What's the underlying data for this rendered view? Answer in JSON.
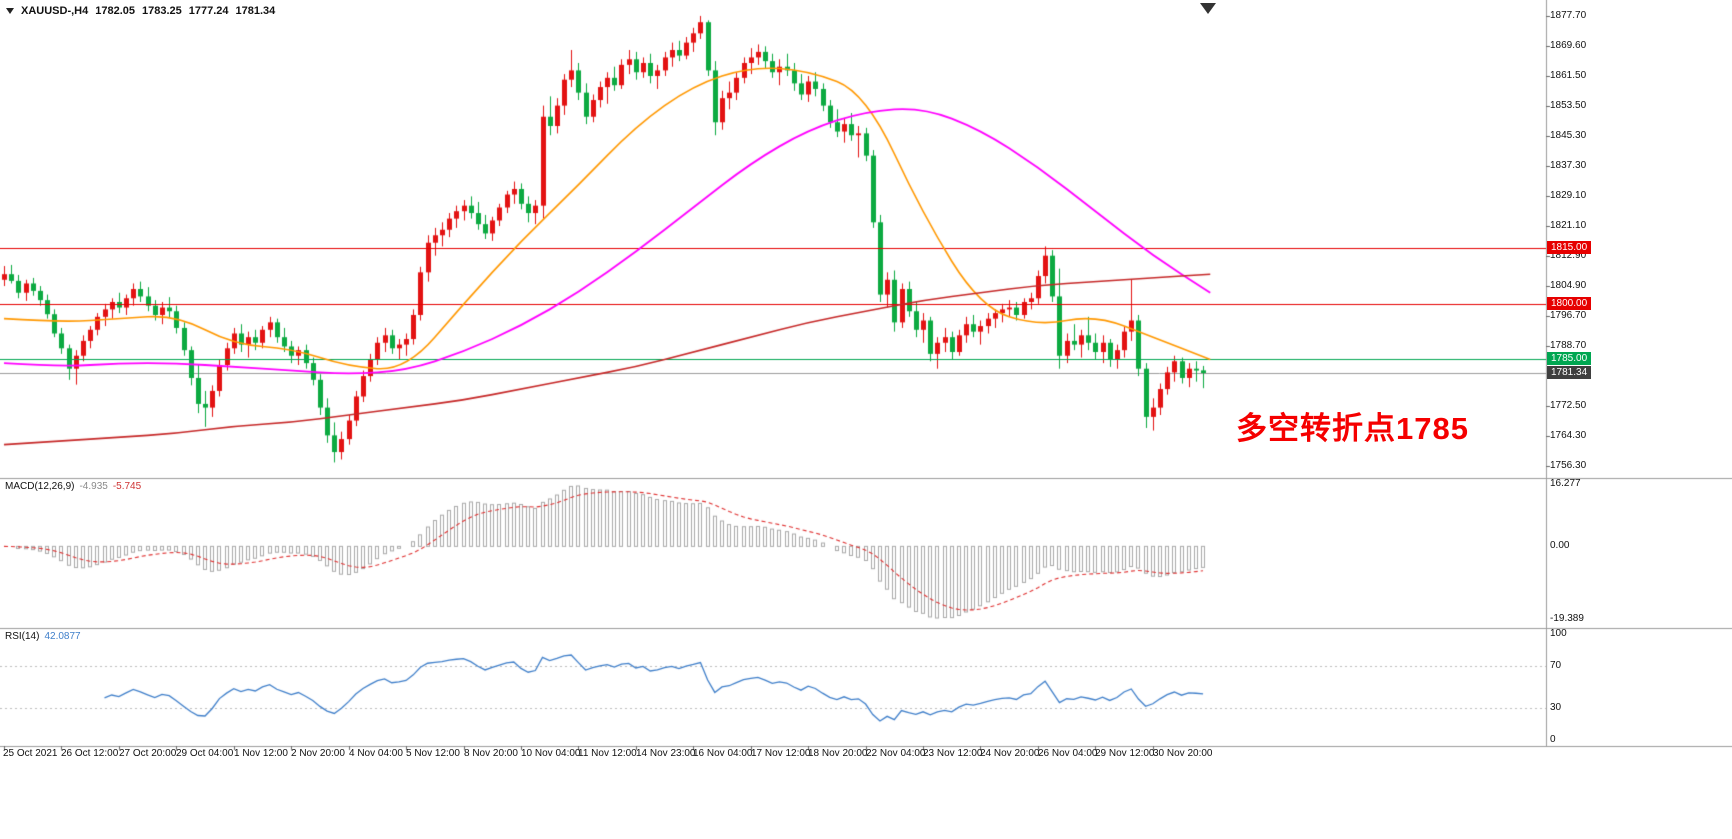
{
  "header": {
    "symbol_period": "XAUUSD-,H4",
    "open": "1782.05",
    "high": "1783.25",
    "low": "1777.24",
    "close": "1781.34"
  },
  "annotation": {
    "text": "多空转折点1785",
    "color": "#f50000"
  },
  "chart_data": {
    "type": "candlestick",
    "symbol": "XAUUSD-",
    "timeframe": "H4",
    "bull_color": "#e31212",
    "bear_color": "#0caa41",
    "price_axis_ticks": [
      "1877.70",
      "1869.60",
      "1861.50",
      "1853.50",
      "1845.30",
      "1837.30",
      "1829.10",
      "1821.10",
      "1812.90",
      "1804.90",
      "1796.70",
      "1788.70",
      "1772.50",
      "1764.30",
      "1756.30"
    ],
    "time_axis": [
      {
        "bar": 0,
        "label": "25 Oct 2021"
      },
      {
        "bar": 8,
        "label": "26 Oct 12:00"
      },
      {
        "bar": 16,
        "label": "27 Oct 20:00"
      },
      {
        "bar": 24,
        "label": "29 Oct 04:00"
      },
      {
        "bar": 32,
        "label": "1 Nov 12:00"
      },
      {
        "bar": 40,
        "label": "2 Nov 20:00"
      },
      {
        "bar": 48,
        "label": "4 Nov 04:00"
      },
      {
        "bar": 56,
        "label": "5 Nov 12:00"
      },
      {
        "bar": 64,
        "label": "8 Nov 20:00"
      },
      {
        "bar": 72,
        "label": "10 Nov 04:00"
      },
      {
        "bar": 80,
        "label": "11 Nov 12:00"
      },
      {
        "bar": 88,
        "label": "14 Nov 23:00"
      },
      {
        "bar": 96,
        "label": "16 Nov 04:00"
      },
      {
        "bar": 104,
        "label": "17 Nov 12:00"
      },
      {
        "bar": 112,
        "label": "18 Nov 20:00"
      },
      {
        "bar": 120,
        "label": "22 Nov 04:00"
      },
      {
        "bar": 128,
        "label": "23 Nov 12:00"
      },
      {
        "bar": 136,
        "label": "24 Nov 20:00"
      },
      {
        "bar": 144,
        "label": "26 Nov 04:00"
      },
      {
        "bar": 152,
        "label": "29 Nov 12:00"
      },
      {
        "bar": 160,
        "label": "30 Nov 20:00"
      }
    ],
    "candles": [
      [
        1806.5,
        1810.2,
        1804.8,
        1808.0
      ],
      [
        1808.0,
        1810.5,
        1805.5,
        1806.2
      ],
      [
        1806.2,
        1807.8,
        1801.5,
        1803.0
      ],
      [
        1803.0,
        1806.5,
        1800.8,
        1805.5
      ],
      [
        1805.5,
        1807.0,
        1802.2,
        1803.5
      ],
      [
        1803.5,
        1804.8,
        1799.5,
        1801.0
      ],
      [
        1801.0,
        1802.5,
        1796.0,
        1797.2
      ],
      [
        1797.2,
        1798.5,
        1791.0,
        1792.0
      ],
      [
        1792.0,
        1793.5,
        1786.5,
        1788.0
      ],
      [
        1788.0,
        1789.0,
        1779.5,
        1782.5
      ],
      [
        1782.5,
        1787.5,
        1778.2,
        1786.0
      ],
      [
        1786.0,
        1791.5,
        1784.5,
        1790.0
      ],
      [
        1790.0,
        1794.0,
        1788.0,
        1793.0
      ],
      [
        1793.0,
        1797.5,
        1791.5,
        1796.5
      ],
      [
        1796.5,
        1800.0,
        1794.0,
        1798.5
      ],
      [
        1798.5,
        1801.5,
        1796.0,
        1800.5
      ],
      [
        1800.5,
        1803.0,
        1797.5,
        1799.0
      ],
      [
        1799.0,
        1802.5,
        1797.0,
        1801.5
      ],
      [
        1801.5,
        1805.5,
        1799.5,
        1804.0
      ],
      [
        1804.0,
        1806.0,
        1800.5,
        1802.0
      ],
      [
        1802.0,
        1804.5,
        1798.0,
        1799.5
      ],
      [
        1799.5,
        1801.0,
        1795.5,
        1797.0
      ],
      [
        1797.0,
        1800.5,
        1794.5,
        1799.0
      ],
      [
        1799.0,
        1801.8,
        1796.2,
        1798.0
      ],
      [
        1798.0,
        1799.5,
        1792.0,
        1793.5
      ],
      [
        1793.5,
        1795.0,
        1786.0,
        1787.5
      ],
      [
        1787.5,
        1788.5,
        1778.0,
        1780.0
      ],
      [
        1780.0,
        1783.5,
        1770.5,
        1773.0
      ],
      [
        1773.0,
        1776.5,
        1766.8,
        1772.0
      ],
      [
        1772.0,
        1778.0,
        1769.5,
        1776.5
      ],
      [
        1776.5,
        1785.0,
        1775.0,
        1783.5
      ],
      [
        1783.5,
        1789.5,
        1782.0,
        1788.0
      ],
      [
        1788.0,
        1793.5,
        1786.5,
        1792.0
      ],
      [
        1792.0,
        1794.5,
        1787.0,
        1789.0
      ],
      [
        1789.0,
        1792.5,
        1785.5,
        1791.0
      ],
      [
        1791.0,
        1793.0,
        1787.5,
        1789.5
      ],
      [
        1789.5,
        1794.0,
        1788.0,
        1793.0
      ],
      [
        1793.0,
        1796.5,
        1791.0,
        1795.0
      ],
      [
        1795.0,
        1796.0,
        1789.5,
        1791.0
      ],
      [
        1791.0,
        1793.5,
        1787.0,
        1788.5
      ],
      [
        1788.5,
        1790.0,
        1784.0,
        1786.0
      ],
      [
        1786.0,
        1788.5,
        1783.5,
        1787.5
      ],
      [
        1787.5,
        1789.0,
        1782.5,
        1784.0
      ],
      [
        1784.0,
        1785.5,
        1778.0,
        1779.5
      ],
      [
        1779.5,
        1781.0,
        1770.0,
        1772.0
      ],
      [
        1772.0,
        1774.5,
        1762.5,
        1764.5
      ],
      [
        1764.5,
        1768.0,
        1757.2,
        1760.0
      ],
      [
        1760.0,
        1765.5,
        1758.0,
        1763.5
      ],
      [
        1763.5,
        1770.0,
        1762.0,
        1768.5
      ],
      [
        1768.5,
        1776.5,
        1767.0,
        1775.0
      ],
      [
        1775.0,
        1782.0,
        1773.5,
        1780.5
      ],
      [
        1780.5,
        1786.5,
        1779.0,
        1785.0
      ],
      [
        1785.0,
        1791.0,
        1783.5,
        1789.5
      ],
      [
        1789.5,
        1793.5,
        1787.0,
        1791.5
      ],
      [
        1791.5,
        1793.0,
        1786.5,
        1788.0
      ],
      [
        1788.0,
        1790.5,
        1785.0,
        1789.0
      ],
      [
        1789.0,
        1792.0,
        1786.0,
        1790.5
      ],
      [
        1790.5,
        1798.5,
        1789.0,
        1797.0
      ],
      [
        1797.0,
        1810.0,
        1795.5,
        1808.5
      ],
      [
        1808.5,
        1818.5,
        1806.0,
        1816.5
      ],
      [
        1816.5,
        1820.5,
        1813.0,
        1818.5
      ],
      [
        1818.5,
        1822.0,
        1815.5,
        1820.0
      ],
      [
        1820.0,
        1824.5,
        1818.0,
        1823.0
      ],
      [
        1823.0,
        1826.5,
        1820.5,
        1825.0
      ],
      [
        1825.0,
        1828.0,
        1822.5,
        1826.5
      ],
      [
        1826.5,
        1829.0,
        1823.0,
        1824.5
      ],
      [
        1824.5,
        1827.5,
        1820.0,
        1821.5
      ],
      [
        1821.5,
        1824.0,
        1817.5,
        1819.0
      ],
      [
        1819.0,
        1823.5,
        1817.0,
        1822.5
      ],
      [
        1822.5,
        1827.0,
        1821.0,
        1826.0
      ],
      [
        1826.0,
        1830.5,
        1824.5,
        1829.5
      ],
      [
        1829.5,
        1833.0,
        1827.0,
        1831.0
      ],
      [
        1831.0,
        1832.5,
        1825.5,
        1827.0
      ],
      [
        1827.0,
        1829.0,
        1822.0,
        1824.5
      ],
      [
        1824.5,
        1828.0,
        1821.5,
        1826.5
      ],
      [
        1826.5,
        1853.5,
        1823.0,
        1850.5
      ],
      [
        1850.5,
        1856.0,
        1845.5,
        1848.0
      ],
      [
        1848.0,
        1855.5,
        1846.0,
        1853.5
      ],
      [
        1853.5,
        1862.0,
        1851.0,
        1860.5
      ],
      [
        1860.5,
        1868.5,
        1858.5,
        1863.0
      ],
      [
        1863.0,
        1865.0,
        1855.0,
        1857.0
      ],
      [
        1857.0,
        1859.5,
        1848.5,
        1850.5
      ],
      [
        1850.5,
        1856.5,
        1849.0,
        1855.0
      ],
      [
        1855.0,
        1860.0,
        1853.0,
        1858.5
      ],
      [
        1858.5,
        1862.5,
        1854.0,
        1861.0
      ],
      [
        1861.0,
        1864.0,
        1857.5,
        1859.0
      ],
      [
        1859.0,
        1866.0,
        1858.0,
        1864.5
      ],
      [
        1864.5,
        1868.5,
        1862.0,
        1866.0
      ],
      [
        1866.0,
        1868.0,
        1860.5,
        1862.5
      ],
      [
        1862.5,
        1866.5,
        1861.0,
        1865.0
      ],
      [
        1865.0,
        1867.5,
        1859.5,
        1861.5
      ],
      [
        1861.5,
        1864.5,
        1858.0,
        1863.0
      ],
      [
        1863.0,
        1868.0,
        1861.5,
        1866.5
      ],
      [
        1866.5,
        1870.5,
        1864.0,
        1868.5
      ],
      [
        1868.5,
        1871.0,
        1865.5,
        1867.0
      ],
      [
        1867.0,
        1872.0,
        1866.0,
        1870.5
      ],
      [
        1870.5,
        1874.5,
        1868.0,
        1873.0
      ],
      [
        1873.0,
        1877.7,
        1871.5,
        1876.0
      ],
      [
        1876.0,
        1876.5,
        1861.5,
        1863.0
      ],
      [
        1863.0,
        1865.5,
        1845.5,
        1849.0
      ],
      [
        1849.0,
        1857.5,
        1847.0,
        1855.5
      ],
      [
        1855.5,
        1860.0,
        1852.5,
        1857.0
      ],
      [
        1857.0,
        1862.5,
        1855.0,
        1861.0
      ],
      [
        1861.0,
        1866.5,
        1859.5,
        1865.0
      ],
      [
        1865.0,
        1869.0,
        1862.0,
        1866.5
      ],
      [
        1866.5,
        1870.0,
        1864.5,
        1868.0
      ],
      [
        1868.0,
        1869.5,
        1863.5,
        1865.5
      ],
      [
        1865.5,
        1867.5,
        1861.0,
        1862.5
      ],
      [
        1862.5,
        1866.0,
        1859.0,
        1864.0
      ],
      [
        1864.0,
        1867.5,
        1861.5,
        1863.0
      ],
      [
        1863.0,
        1865.0,
        1857.5,
        1859.5
      ],
      [
        1859.5,
        1862.0,
        1855.0,
        1856.5
      ],
      [
        1856.5,
        1861.5,
        1854.5,
        1860.0
      ],
      [
        1860.0,
        1862.5,
        1856.0,
        1858.0
      ],
      [
        1858.0,
        1859.5,
        1852.0,
        1853.5
      ],
      [
        1853.5,
        1855.0,
        1847.5,
        1849.0
      ],
      [
        1849.0,
        1852.5,
        1845.0,
        1846.5
      ],
      [
        1846.5,
        1850.0,
        1843.5,
        1848.5
      ],
      [
        1848.5,
        1851.5,
        1844.0,
        1845.5
      ],
      [
        1845.5,
        1848.0,
        1839.5,
        1846.0
      ],
      [
        1846.0,
        1847.5,
        1838.5,
        1840.0
      ],
      [
        1840.0,
        1841.5,
        1820.5,
        1822.0
      ],
      [
        1822.0,
        1824.0,
        1800.5,
        1802.5
      ],
      [
        1802.5,
        1808.5,
        1799.0,
        1806.5
      ],
      [
        1806.5,
        1809.0,
        1792.5,
        1795.0
      ],
      [
        1795.0,
        1805.5,
        1793.5,
        1804.0
      ],
      [
        1804.0,
        1806.0,
        1796.5,
        1798.0
      ],
      [
        1798.0,
        1800.5,
        1791.0,
        1793.0
      ],
      [
        1793.0,
        1797.5,
        1789.5,
        1795.5
      ],
      [
        1795.5,
        1796.5,
        1784.5,
        1786.5
      ],
      [
        1786.5,
        1791.0,
        1782.5,
        1789.5
      ],
      [
        1789.5,
        1793.5,
        1787.0,
        1791.0
      ],
      [
        1791.0,
        1792.5,
        1785.0,
        1787.0
      ],
      [
        1787.0,
        1793.0,
        1786.0,
        1791.5
      ],
      [
        1791.5,
        1796.5,
        1789.5,
        1794.5
      ],
      [
        1794.5,
        1797.0,
        1791.0,
        1792.5
      ],
      [
        1792.5,
        1795.5,
        1789.0,
        1794.0
      ],
      [
        1794.0,
        1797.5,
        1792.0,
        1796.0
      ],
      [
        1796.0,
        1798.5,
        1793.5,
        1797.5
      ],
      [
        1797.5,
        1800.0,
        1795.0,
        1798.5
      ],
      [
        1798.5,
        1801.0,
        1796.5,
        1799.0
      ],
      [
        1799.0,
        1800.5,
        1795.5,
        1797.0
      ],
      [
        1797.0,
        1801.5,
        1796.0,
        1800.5
      ],
      [
        1800.5,
        1803.0,
        1798.5,
        1801.5
      ],
      [
        1801.5,
        1809.0,
        1800.0,
        1807.5
      ],
      [
        1807.5,
        1815.5,
        1805.5,
        1813.0
      ],
      [
        1813.0,
        1814.5,
        1800.5,
        1802.0
      ],
      [
        1802.0,
        1809.5,
        1782.5,
        1786.0
      ],
      [
        1786.0,
        1792.0,
        1784.0,
        1790.0
      ],
      [
        1790.0,
        1794.5,
        1787.5,
        1789.0
      ],
      [
        1789.0,
        1793.0,
        1785.5,
        1791.5
      ],
      [
        1791.5,
        1796.5,
        1787.5,
        1789.5
      ],
      [
        1789.5,
        1792.0,
        1785.0,
        1787.0
      ],
      [
        1787.0,
        1791.5,
        1784.0,
        1789.5
      ],
      [
        1789.5,
        1790.5,
        1783.0,
        1785.0
      ],
      [
        1785.0,
        1789.0,
        1782.5,
        1787.5
      ],
      [
        1787.5,
        1794.0,
        1785.5,
        1792.5
      ],
      [
        1792.5,
        1806.5,
        1790.0,
        1795.5
      ],
      [
        1795.5,
        1797.0,
        1780.5,
        1782.5
      ],
      [
        1782.5,
        1784.0,
        1766.5,
        1769.5
      ],
      [
        1769.5,
        1774.5,
        1765.8,
        1772.0
      ],
      [
        1772.0,
        1778.5,
        1770.0,
        1777.0
      ],
      [
        1777.0,
        1783.0,
        1775.5,
        1781.5
      ],
      [
        1781.5,
        1786.0,
        1779.0,
        1784.5
      ],
      [
        1784.5,
        1785.5,
        1778.5,
        1780.0
      ],
      [
        1780.0,
        1784.0,
        1777.5,
        1782.5
      ],
      [
        1782.5,
        1784.5,
        1779.0,
        1782.0
      ],
      [
        1782.05,
        1783.25,
        1777.24,
        1781.34
      ]
    ],
    "moving_averages": [
      {
        "name": "fast-ma",
        "color": "#ff9800",
        "width": 1.6,
        "sample_step": 8,
        "values": [
          1796,
          1795,
          1796,
          1797,
          1789,
          1788,
          1783,
          1782,
          1800,
          1817,
          1832,
          1848,
          1859,
          1864,
          1863,
          1857,
          1824,
          1799,
          1794,
          1797,
          1791,
          1785
        ]
      },
      {
        "name": "mid-ma",
        "color": "#ff00ff",
        "width": 1.8,
        "sample_step": 8,
        "values": [
          1784,
          1783,
          1784,
          1784,
          1783,
          1782,
          1781,
          1782,
          1787,
          1794,
          1803,
          1814,
          1826,
          1838,
          1847,
          1852,
          1853,
          1847,
          1837,
          1825,
          1813,
          1803
        ]
      },
      {
        "name": "slow-ma",
        "color": "#c62828",
        "width": 1.6,
        "sample_step": 8,
        "values": [
          1762,
          1763,
          1764,
          1765,
          1767,
          1768,
          1770,
          1772,
          1774,
          1777,
          1780,
          1783,
          1787,
          1791,
          1795,
          1798,
          1801,
          1803,
          1805,
          1806,
          1807,
          1808
        ]
      }
    ],
    "levels": [
      {
        "price": 1815.0,
        "label": "1815.00",
        "color": "#e60000"
      },
      {
        "price": 1800.0,
        "label": "1800.00",
        "color": "#e60000"
      },
      {
        "price": 1785.0,
        "label": "1785.00",
        "color": "#00a651"
      }
    ],
    "current_price": {
      "value": 1781.34,
      "label": "1781.34",
      "color": "#3f3f3f",
      "line_color": "#9b9b9b"
    },
    "indicators": {
      "macd": {
        "label": "MACD(12,26,9)",
        "main_value": "-4.935",
        "signal_value": "-5.745",
        "fast": 12,
        "slow": 26,
        "signal": 9,
        "scale_max": "16.277",
        "scale_zero": "0.00",
        "scale_min": "-19.389",
        "histogram_color": "#a9a9a9",
        "signal_color": "#e03030"
      },
      "rsi": {
        "label": "RSI(14)",
        "value": "42.0877",
        "period": 14,
        "line_color": "#3f7fca",
        "scale_ticks": [
          {
            "value": 100,
            "label": "100"
          },
          {
            "value": 70,
            "label": "70"
          },
          {
            "value": 30,
            "label": "30"
          },
          {
            "value": 0,
            "label": "0"
          }
        ],
        "levels": [
          70,
          30
        ]
      }
    }
  }
}
